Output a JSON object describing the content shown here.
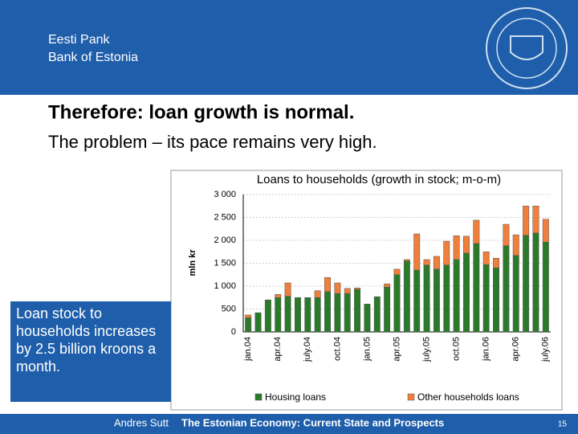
{
  "header": {
    "org": "Eesti Pank",
    "org_en": "Bank of Estonia"
  },
  "title": "Therefore: loan growth is normal.",
  "subtitle": "The problem – its pace remains very high.",
  "callout": "Loan stock to households increases by 2.5 billion kroons a month.",
  "footer": {
    "author": "Andres Sutt",
    "talk": "The Estonian Economy: Current State and Prospects",
    "page": "15"
  },
  "chart_data": {
    "type": "stacked-bar",
    "title": "Loans to households (growth in stock; m-o-m)",
    "y_label": "mln kr",
    "categories": [
      "jan.04",
      null,
      null,
      "apr.04",
      null,
      null,
      "july.04",
      null,
      null,
      "oct.04",
      null,
      null,
      "jan.05",
      null,
      null,
      "apr.05",
      null,
      null,
      "july.05",
      null,
      null,
      "oct.05",
      null,
      null,
      "jan.06",
      null,
      null,
      "apr.06",
      null,
      null,
      "july.06"
    ],
    "series": [
      {
        "name": "Housing loans",
        "color": "#2a7a2a",
        "values": [
          310,
          420,
          700,
          750,
          780,
          750,
          750,
          750,
          880,
          840,
          840,
          930,
          610,
          770,
          980,
          1250,
          1550,
          1350,
          1460,
          1370,
          1460,
          1580,
          1720,
          1930,
          1470,
          1400,
          1880,
          1670,
          2110,
          2160,
          1960
        ]
      },
      {
        "name": "Other households loans",
        "color": "#f07f3c",
        "values": [
          60,
          0,
          0,
          70,
          290,
          0,
          0,
          150,
          310,
          230,
          110,
          30,
          0,
          0,
          70,
          120,
          30,
          790,
          120,
          280,
          520,
          520,
          370,
          510,
          280,
          210,
          470,
          450,
          640,
          590,
          500
        ]
      }
    ],
    "ylim": [
      0,
      3000
    ],
    "yticks": [
      0,
      500,
      {
        "value": 1000,
        "label": "1 000"
      },
      {
        "value": 1500,
        "label": "1 500"
      },
      {
        "value": 2000,
        "label": "2 000"
      },
      {
        "value": 2500,
        "label": "2 500"
      },
      {
        "value": 3000,
        "label": "3 000"
      }
    ],
    "grid": true,
    "legend": "bottom"
  }
}
